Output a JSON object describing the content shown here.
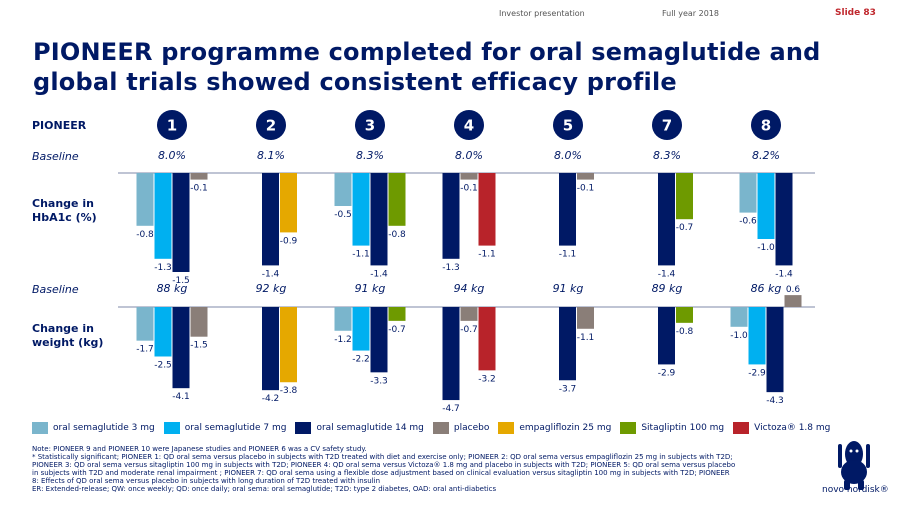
{
  "header": {
    "left": "Investor presentation",
    "mid": "Full year 2018",
    "slide": "Slide 83"
  },
  "title_line1": "PIONEER programme completed for oral semaglutide and",
  "title_line2": "global trials showed consistent efficacy profile",
  "row_labels": {
    "pioneer": "PIONEER",
    "baseline": "Baseline",
    "hba1c": "Change in HbA1c (%)",
    "weight": "Change in weight (kg)"
  },
  "colors": {
    "oral_3": "#7ab5cc",
    "oral_7": "#00b0f0",
    "oral_14": "#001965",
    "placebo": "#8a7e78",
    "empagliflozin": "#e5a800",
    "sitagliptin": "#6e9a00",
    "victoza": "#b8232a"
  },
  "legend": [
    {
      "label": "oral semaglutide 3 mg",
      "color": "#7ab5cc"
    },
    {
      "label": "oral semaglutide 7 mg",
      "color": "#00b0f0"
    },
    {
      "label": "oral semaglutide 14 mg",
      "color": "#001965"
    },
    {
      "label": "placebo",
      "color": "#8a7e78"
    },
    {
      "label": "empagliflozin 25 mg",
      "color": "#e5a800"
    },
    {
      "label": "Sitagliptin 100 mg",
      "color": "#6e9a00"
    },
    {
      "label": "Victoza® 1.8 mg",
      "color": "#b8232a"
    }
  ],
  "chart_data": [
    {
      "type": "bar",
      "title": "Change in HbA1c (%)",
      "categories": [
        "1",
        "2",
        "3",
        "4",
        "5",
        "7",
        "8"
      ],
      "baseline": [
        "8.0%",
        "8.1%",
        "8.3%",
        "8.0%",
        "8.0%",
        "8.3%",
        "8.2%"
      ],
      "groups": [
        [
          {
            "series": "oral semaglutide 3 mg",
            "value": -0.8
          },
          {
            "series": "oral semaglutide 7 mg",
            "value": -1.3
          },
          {
            "series": "oral semaglutide 14 mg",
            "value": -1.5
          },
          {
            "series": "placebo",
            "value": -0.1
          }
        ],
        [
          {
            "series": "oral semaglutide 14 mg",
            "value": -1.4
          },
          {
            "series": "empagliflozin 25 mg",
            "value": -0.9
          }
        ],
        [
          {
            "series": "oral semaglutide 3 mg",
            "value": -0.5
          },
          {
            "series": "oral semaglutide 7 mg",
            "value": -1.1
          },
          {
            "series": "oral semaglutide 14 mg",
            "value": -1.4
          },
          {
            "series": "Sitagliptin 100 mg",
            "value": -0.8
          }
        ],
        [
          {
            "series": "oral semaglutide 14 mg",
            "value": -1.3
          },
          {
            "series": "placebo",
            "value": -0.1
          },
          {
            "series": "Victoza® 1.8 mg",
            "value": -1.1
          }
        ],
        [
          {
            "series": "oral semaglutide 14 mg",
            "value": -1.1
          },
          {
            "series": "placebo",
            "value": -0.1
          }
        ],
        [
          {
            "series": "oral semaglutide 14 mg",
            "value": -1.4
          },
          {
            "series": "Sitagliptin 100 mg",
            "value": -0.7
          }
        ],
        [
          {
            "series": "oral semaglutide 3 mg",
            "value": -0.6
          },
          {
            "series": "oral semaglutide 7 mg",
            "value": -1.0
          },
          {
            "series": "oral semaglutide 14 mg",
            "value": -1.4
          }
        ]
      ]
    },
    {
      "type": "bar",
      "title": "Change in weight (kg)",
      "categories": [
        "1",
        "2",
        "3",
        "4",
        "5",
        "7",
        "8"
      ],
      "baseline": [
        "88 kg",
        "92 kg",
        "91 kg",
        "94 kg",
        "91 kg",
        "89 kg",
        "86 kg"
      ],
      "groups": [
        [
          {
            "series": "oral semaglutide 3 mg",
            "value": -1.7
          },
          {
            "series": "oral semaglutide 7 mg",
            "value": -2.5
          },
          {
            "series": "oral semaglutide 14 mg",
            "value": -4.1
          },
          {
            "series": "placebo",
            "value": -1.5
          }
        ],
        [
          {
            "series": "oral semaglutide 14 mg",
            "value": -4.2
          },
          {
            "series": "empagliflozin 25 mg",
            "value": -3.8
          }
        ],
        [
          {
            "series": "oral semaglutide 3 mg",
            "value": -1.2
          },
          {
            "series": "oral semaglutide 7 mg",
            "value": -2.2
          },
          {
            "series": "oral semaglutide 14 mg",
            "value": -3.3
          },
          {
            "series": "Sitagliptin 100 mg",
            "value": -0.7
          }
        ],
        [
          {
            "series": "oral semaglutide 14 mg",
            "value": -4.7
          },
          {
            "series": "placebo",
            "value": -0.7
          },
          {
            "series": "Victoza® 1.8 mg",
            "value": -3.2
          }
        ],
        [
          {
            "series": "oral semaglutide 14 mg",
            "value": -3.7
          },
          {
            "series": "placebo",
            "value": -1.1
          }
        ],
        [
          {
            "series": "oral semaglutide 14 mg",
            "value": -2.9
          },
          {
            "series": "Sitagliptin 100 mg",
            "value": -0.8
          }
        ],
        [
          {
            "series": "oral semaglutide 3 mg",
            "value": -1.0
          },
          {
            "series": "oral semaglutide 7 mg",
            "value": -2.9
          },
          {
            "series": "oral semaglutide 14 mg",
            "value": -4.3
          },
          {
            "series": "placebo",
            "value": 0.6
          }
        ]
      ]
    }
  ],
  "notes": [
    "Note: PIONEER 9 and PIONEER 10 were Japanese studies and PIONEER 6 was a CV safety study.",
    "* Statistically significant; PIONEER 1: QD oral sema versus placebo in subjects with T2D treated with diet and exercise only; PIONEER 2: QD oral sema versus empagliflozin 25 mg in subjects with T2D;",
    "PIONEER 3: QD oral sema versus sitagliptin 100 mg in subjects with T2D; PIONEER 4: QD oral sema versus Victoza® 1.8 mg and placebo in subjects with T2D; PIONEER 5: QD oral sema versus placebo",
    "in subjects with T2D and moderate renal impairment ; PIONEER 7: QD oral sema using a flexible dose adjustment based on clinical evaluation versus sitagliptin 100 mg in subjects with T2D; PIONEER",
    "8: Effects of QD oral sema versus placebo in subjects with long duration of T2D treated with insulin",
    "ER: Extended-release; QW: once weekly; QD: once daily; oral sema: oral semaglutide; T2D: type 2 diabetes, OAD: oral anti-diabetics"
  ],
  "logo": {
    "text": "novo nordisk®"
  }
}
